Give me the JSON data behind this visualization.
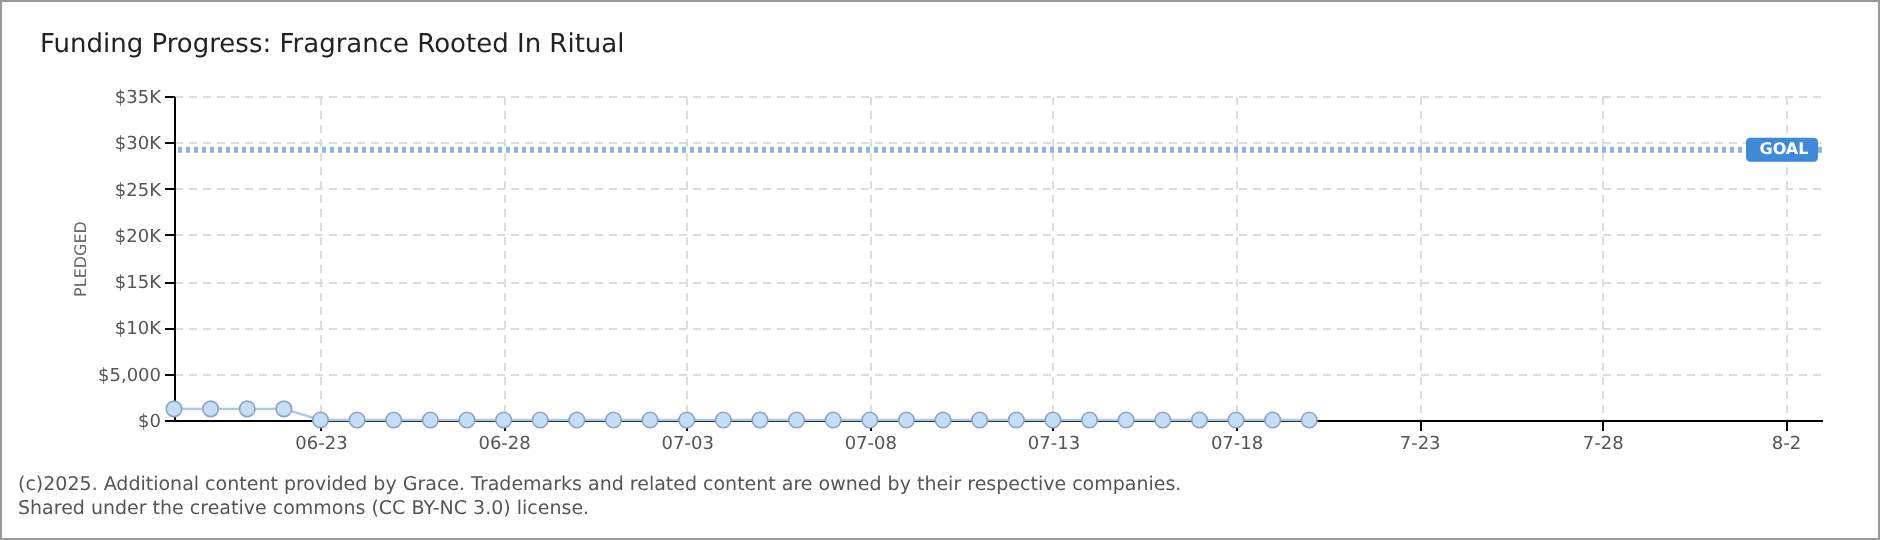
{
  "chart_data": {
    "type": "line",
    "title": "Funding Progress: Fragrance Rooted In Ritual",
    "ylabel": "PLEDGED",
    "x": [
      "--06-19",
      "--06-20",
      "--06-21",
      "--06-22",
      "--06-23",
      "--06-24",
      "--06-25",
      "--06-26",
      "--06-27",
      "--06-28",
      "--06-29",
      "--06-30",
      "--07-01",
      "--07-02",
      "--07-03",
      "--07-04",
      "--07-05",
      "--07-06",
      "--07-07",
      "--07-08",
      "--07-09",
      "--07-10",
      "--07-11",
      "--07-12",
      "--07-13",
      "--07-14",
      "--07-15",
      "--07-16",
      "--07-17",
      "--07-18",
      "--07-19",
      "--07-20"
    ],
    "series": [
      {
        "color": "#a8c8ec",
        "values": [
          1200,
          1200,
          1200,
          1200,
          0,
          0,
          0,
          0,
          0,
          0,
          0,
          0,
          0,
          0,
          0,
          0,
          0,
          0,
          0,
          0,
          0,
          0,
          0,
          0,
          0,
          0,
          0,
          0,
          0,
          0,
          0,
          0
        ]
      }
    ],
    "xlim": [
      "--06-19",
      "--08-03"
    ],
    "xticks": [
      {
        "value": "--06-23",
        "label": "06-23"
      },
      {
        "value": "--06-28",
        "label": "06-28"
      },
      {
        "value": "--07-03",
        "label": "07-03"
      },
      {
        "value": "--07-08",
        "label": "07-08"
      },
      {
        "value": "--07-13",
        "label": "07-13"
      },
      {
        "value": "--07-18",
        "label": "07-18"
      },
      {
        "value": "--07-23",
        "label": "7-23"
      },
      {
        "value": "--07-28",
        "label": "7-28"
      },
      {
        "value": "--08-02",
        "label": "8-2"
      }
    ],
    "ylim": [
      0,
      35000
    ],
    "yticks": [
      {
        "value": 0,
        "label": "$0"
      },
      {
        "value": 5000,
        "label": "$5,000"
      },
      {
        "value": 10000,
        "label": "$10K"
      },
      {
        "value": 15000,
        "label": "$15K"
      },
      {
        "value": 20000,
        "label": "$20K"
      },
      {
        "value": 25000,
        "label": "$25K"
      },
      {
        "value": 30000,
        "label": "$30K"
      },
      {
        "value": 35000,
        "label": "$35K"
      }
    ],
    "grid": true,
    "marker": "circle",
    "line_style": "solid",
    "ref_lines": [
      {
        "axis": "y",
        "value": 29200,
        "label": "GOAL",
        "color": "#8fb4de",
        "line_style": "dotted"
      }
    ],
    "annotations": [
      "(c)2025. Additional content provided by Grace. Trademarks and related content are owned by their respective companies.",
      "Shared under the creative commons (CC BY-NC 3.0) license."
    ]
  }
}
